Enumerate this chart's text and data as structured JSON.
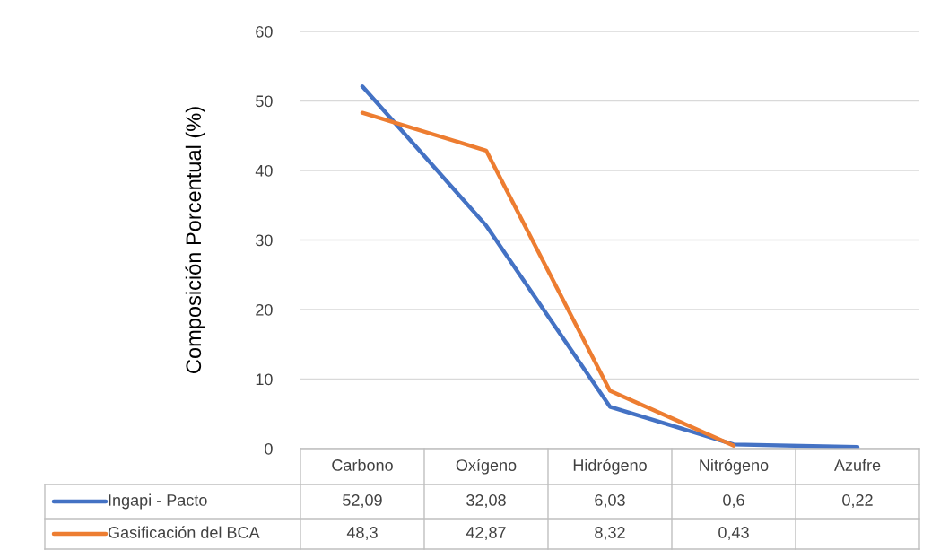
{
  "chart_data": {
    "type": "line",
    "ylabel": "Composición Porcentual (%)",
    "categories": [
      "Carbono",
      "Oxígeno",
      "Hidrógeno",
      "Nitrógeno",
      "Azufre"
    ],
    "series": [
      {
        "name": "Ingapi - Pacto",
        "color": "#4472c4",
        "values": [
          52.09,
          32.08,
          6.03,
          0.6,
          0.22
        ],
        "value_labels": [
          "52,09",
          "32,08",
          "6,03",
          "0,6",
          "0,22"
        ]
      },
      {
        "name": "Gasificación del BCA",
        "color": "#ed7d31",
        "values": [
          48.3,
          42.87,
          8.32,
          0.43,
          null
        ],
        "value_labels": [
          "48,3",
          "42,87",
          "8,32",
          "0,43",
          null
        ]
      }
    ],
    "ylim": [
      0,
      60
    ],
    "yticks": [
      0,
      10,
      20,
      30,
      40,
      50,
      60
    ],
    "grid": "y",
    "legend": "bottom",
    "marker": "none",
    "line_style": "solid"
  }
}
